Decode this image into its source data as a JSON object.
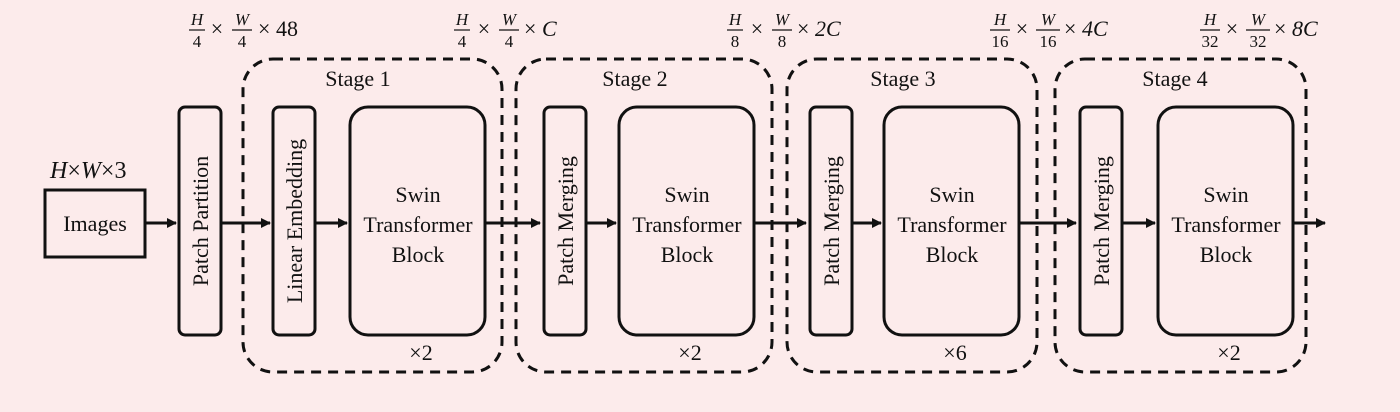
{
  "input": {
    "dims": {
      "a": "H",
      "b": "W",
      "c": "3"
    },
    "label": "Images"
  },
  "patch_partition": {
    "label": "Patch Partition",
    "dims": {
      "num1": "H",
      "den1": "4",
      "num2": "W",
      "den2": "4",
      "suffix": "48"
    }
  },
  "stages": [
    {
      "title": "Stage 1",
      "first_block": "Linear Embedding",
      "swin_lines": [
        "Swin",
        "Transformer",
        "Block"
      ],
      "repeat": "×2",
      "dims": {
        "num1": "H",
        "den1": "4",
        "num2": "W",
        "den2": "4",
        "suffix": "C"
      }
    },
    {
      "title": "Stage 2",
      "first_block": "Patch Merging",
      "swin_lines": [
        "Swin",
        "Transformer",
        "Block"
      ],
      "repeat": "×2",
      "dims": {
        "num1": "H",
        "den1": "8",
        "num2": "W",
        "den2": "8",
        "suffix": "2C"
      }
    },
    {
      "title": "Stage 3",
      "first_block": "Patch Merging",
      "swin_lines": [
        "Swin",
        "Transformer",
        "Block"
      ],
      "repeat": "×6",
      "dims": {
        "num1": "H",
        "den1": "16",
        "num2": "W",
        "den2": "16",
        "suffix": "4C"
      }
    },
    {
      "title": "Stage 4",
      "first_block": "Patch Merging",
      "swin_lines": [
        "Swin",
        "Transformer",
        "Block"
      ],
      "repeat": "×2",
      "dims": {
        "num1": "H",
        "den1": "32",
        "num2": "W",
        "den2": "32",
        "suffix": "8C"
      }
    }
  ],
  "colors": {
    "background": "#fcebeb",
    "stroke": "#111111"
  }
}
